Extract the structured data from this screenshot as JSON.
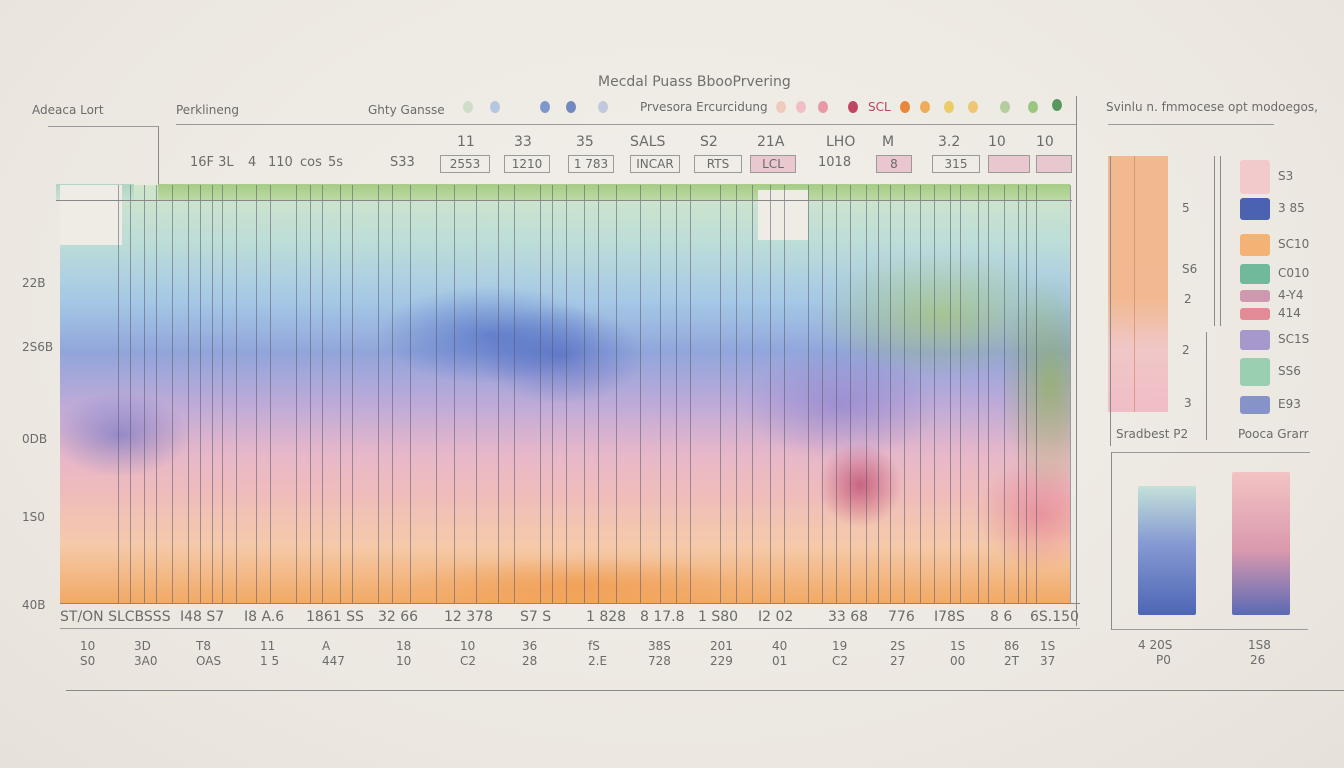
{
  "title": "Mecdal Puass BbooPrvering",
  "subtitle": "Prvesora Ercurcidung",
  "header_labels": {
    "left": "Adeaca Lort",
    "mid": "Perklineng",
    "legend_label": "Ghty Gansse",
    "legend_mid_tag": "SCL"
  },
  "legend_dots": [
    {
      "color": "#c8dcc4"
    },
    {
      "color": "#a9bfdf"
    },
    {
      "color": "#6a8ac8"
    },
    {
      "color": "#5a78b8"
    },
    {
      "color": "#b8c2d8"
    },
    {
      "color": "#f0c4b4"
    },
    {
      "color": "#f2b6c0"
    },
    {
      "color": "#e88a9a"
    },
    {
      "color": "#b8284a"
    },
    {
      "color": "#e8741c"
    },
    {
      "color": "#f0a040"
    },
    {
      "color": "#e8c850"
    },
    {
      "color": "#eec060"
    },
    {
      "color": "#a8c890"
    },
    {
      "color": "#8cc070"
    },
    {
      "color": "#3c8a4a"
    }
  ],
  "top_row_labels": [
    "11",
    "33",
    "35",
    "SALS",
    "S2",
    "21A",
    "LHO",
    "M",
    "3.2",
    "10",
    "10"
  ],
  "top_box_labels": [
    "16F 3L",
    "4",
    "110",
    "cos",
    "5s",
    "S33",
    "2553",
    "1210",
    "1 783",
    "INCAR",
    "RTS",
    "LCL",
    "1018",
    "8",
    "315",
    "",
    ""
  ],
  "y_axis": {
    "ticks": [
      "22B",
      "2S6B",
      "0DB",
      "1S0",
      "40B"
    ]
  },
  "bottom_row_1": [
    "ST/ON SLCBSSS",
    "I48 S7",
    "I8 A.6",
    "1861 SS",
    "32 66",
    "12 378",
    "S7 S",
    "1 828",
    "8 17.8",
    "1 S80",
    "I2 02",
    "33 68",
    "776",
    "I78S",
    "8 6",
    "6S.150"
  ],
  "bottom_row_2": [
    [
      "10",
      "S0"
    ],
    [
      "3D",
      "3A0"
    ],
    [
      "T8",
      "OAS"
    ],
    [
      "11",
      "1 5"
    ],
    [
      "A",
      "447"
    ],
    [
      "18",
      "10"
    ],
    [
      "10",
      "C2"
    ],
    [
      "36",
      "28"
    ],
    [
      "fS",
      "2.E"
    ],
    [
      "38S",
      "728"
    ],
    [
      "201",
      "229"
    ],
    [
      "40",
      "01"
    ],
    [
      "19",
      "C2"
    ],
    [
      "2S",
      "27"
    ],
    [
      "1S",
      "00"
    ],
    [
      "86",
      "2T"
    ],
    [
      "1S",
      "37"
    ]
  ],
  "side_panel": {
    "title": "Svinlu n. fmmocese opt modoegos,",
    "scale_labels": [
      "5",
      "S6",
      "2",
      "2",
      "3"
    ],
    "bar_caption": "Sradbest P2",
    "legend_caption": "Pooca Grarr",
    "legend": [
      {
        "label": "S3",
        "color": "#f2c4c8"
      },
      {
        "label": "3 85",
        "color": "#2e4aa8"
      },
      {
        "label": "SC10",
        "color": "#f4a860"
      },
      {
        "label": "C010",
        "color": "#5ab08e"
      },
      {
        "label": "4-Y4",
        "color": "#c88aa4"
      },
      {
        "label": "414",
        "color": "#e07a88"
      },
      {
        "label": "SC1S",
        "color": "#9a8ac8"
      },
      {
        "label": "SS6",
        "color": "#8ccaa8"
      },
      {
        "label": "E93",
        "color": "#7484c4"
      }
    ]
  },
  "bottom_panel": {
    "bars": [
      {
        "label_1": "4 20S",
        "label_2": "P0",
        "colors": [
          "#bfe0d8",
          "#3c58b0"
        ]
      },
      {
        "label_1": "1S8",
        "label_2": "26",
        "colors": [
          "#f4c0c0",
          "#4a5cb0"
        ]
      }
    ]
  },
  "chart_data": {
    "type": "heatmap",
    "title": "Mecdal Puass BbooPrvering",
    "subtitle": "Prvesora Ercurcidung",
    "xlabel": "",
    "ylabel": "",
    "y_ticks": [
      "22B",
      "2S6B",
      "0DB",
      "1S0",
      "40B"
    ],
    "categories": [
      "16F 3L",
      "4",
      "110",
      "cos",
      "5s",
      "S33",
      "2553",
      "1210",
      "1 783",
      "INCAR",
      "RTS",
      "LCL",
      "1018",
      "8",
      "315",
      "10",
      "10"
    ],
    "color_scale": [
      "#9cc77a",
      "#9fc5e6",
      "#3c58b0",
      "#b8a5d8",
      "#e6b3c8",
      "#f3a45a"
    ],
    "legend_entries": [
      "S3",
      "3 85",
      "SC10",
      "C010",
      "4-Y4",
      "414",
      "SC1S",
      "SS6",
      "E93"
    ],
    "grid": true,
    "legend_position": "right"
  }
}
